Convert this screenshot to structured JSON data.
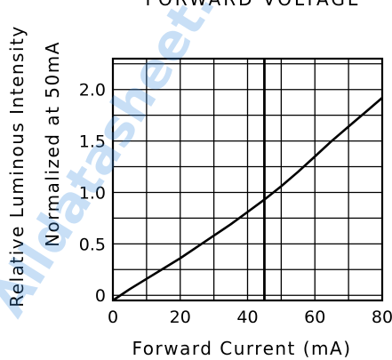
{
  "watermark_text": "Alldatasheet.com",
  "chart_data": {
    "type": "line",
    "title": "FORWARD VOLTAGE",
    "xlabel": "Forward Current (mA)",
    "ylabel_line1": "Relative Luminous Intensity",
    "ylabel_line2": "Normalized at 50mA",
    "xlim": [
      0,
      80
    ],
    "ylim": [
      -0.05,
      2.3
    ],
    "x_ticks": [
      "0",
      "20",
      "40",
      "60",
      "80"
    ],
    "y_ticks": [
      "0",
      "0.5",
      "1.0",
      "1.5",
      "2.0"
    ],
    "grid": true,
    "reference_line_x": 45,
    "series": [
      {
        "x": [
          0,
          5,
          10,
          15,
          20,
          25,
          30,
          35,
          40,
          45,
          50,
          55,
          60,
          65,
          70,
          75,
          80
        ],
        "y": [
          -0.05,
          0.06,
          0.16,
          0.26,
          0.36,
          0.47,
          0.58,
          0.69,
          0.81,
          0.93,
          1.06,
          1.2,
          1.35,
          1.5,
          1.64,
          1.78,
          1.92
        ]
      }
    ]
  }
}
